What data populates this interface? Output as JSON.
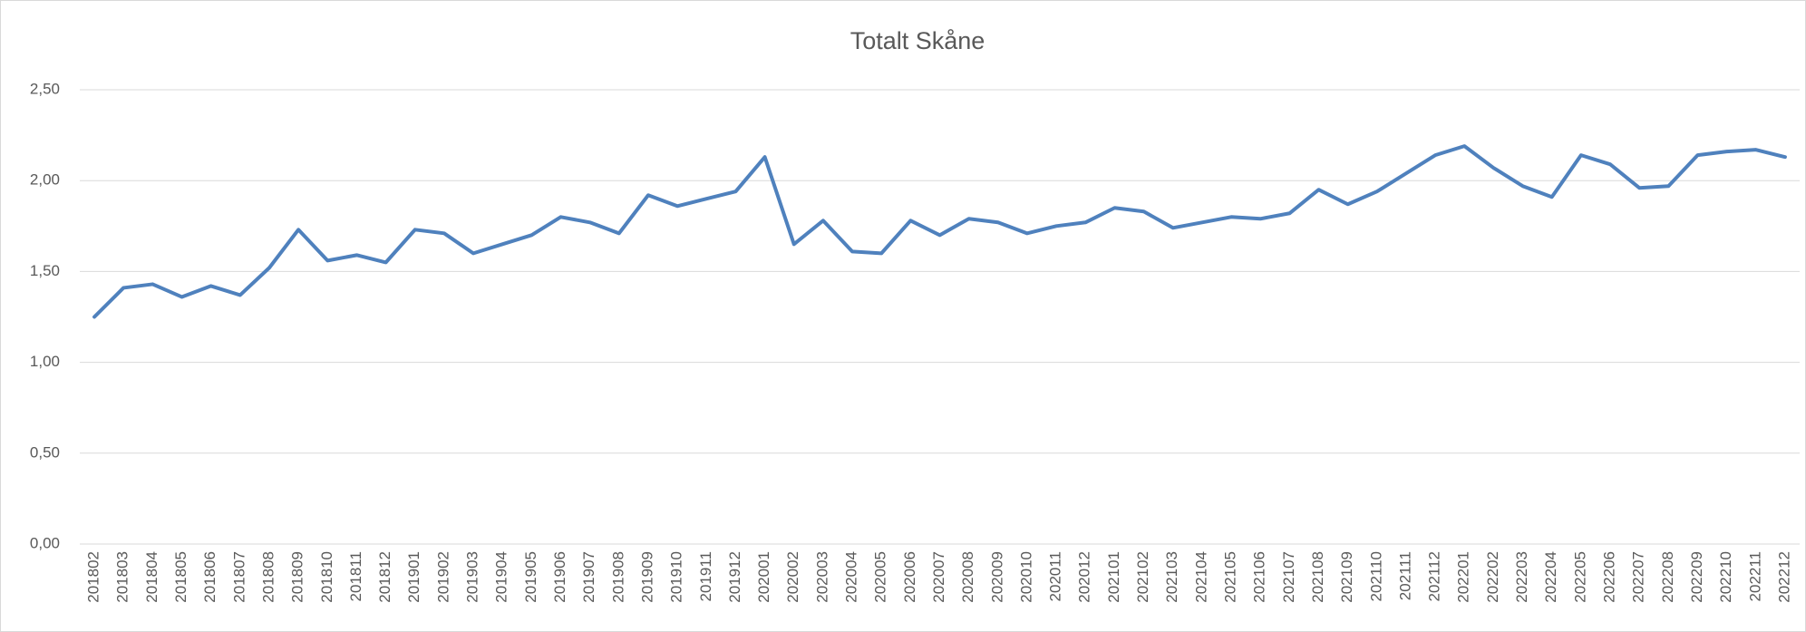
{
  "chart_data": {
    "type": "line",
    "title": "Totalt Skåne",
    "categories": [
      "201802",
      "201803",
      "201804",
      "201805",
      "201806",
      "201807",
      "201808",
      "201809",
      "201810",
      "201811",
      "201812",
      "201901",
      "201902",
      "201903",
      "201904",
      "201905",
      "201906",
      "201907",
      "201908",
      "201909",
      "201910",
      "201911",
      "201912",
      "202001",
      "202002",
      "202003",
      "202004",
      "202005",
      "202006",
      "202007",
      "202008",
      "202009",
      "202010",
      "202011",
      "202012",
      "202101",
      "202102",
      "202103",
      "202104",
      "202105",
      "202106",
      "202107",
      "202108",
      "202109",
      "202110",
      "202111",
      "202112",
      "202201",
      "202202",
      "202203",
      "202204",
      "202205",
      "202206",
      "202207",
      "202208",
      "202209",
      "202210",
      "202211",
      "202212"
    ],
    "series": [
      {
        "name": "Totalt Skåne",
        "color": "#4f81bd",
        "values": [
          1.25,
          1.41,
          1.43,
          1.36,
          1.42,
          1.37,
          1.52,
          1.73,
          1.56,
          1.59,
          1.55,
          1.73,
          1.71,
          1.6,
          1.65,
          1.7,
          1.8,
          1.77,
          1.71,
          1.92,
          1.86,
          1.9,
          1.94,
          2.13,
          1.65,
          1.78,
          1.61,
          1.6,
          1.78,
          1.7,
          1.79,
          1.77,
          1.71,
          1.75,
          1.77,
          1.85,
          1.83,
          1.74,
          1.77,
          1.8,
          1.79,
          1.82,
          1.95,
          1.87,
          1.94,
          2.04,
          2.14,
          2.19,
          2.07,
          1.97,
          1.91,
          2.14,
          2.09,
          1.96,
          1.97,
          2.14,
          2.16,
          2.17,
          2.13
        ]
      }
    ],
    "ylim": [
      0,
      2.5
    ],
    "yticks": [
      {
        "value": 0,
        "label": "0,00"
      },
      {
        "value": 0.5,
        "label": "0,50"
      },
      {
        "value": 1,
        "label": "1,00"
      },
      {
        "value": 1.5,
        "label": "1,50"
      },
      {
        "value": 2,
        "label": "2,00"
      },
      {
        "value": 2.5,
        "label": "2,50"
      }
    ],
    "grid": true
  }
}
